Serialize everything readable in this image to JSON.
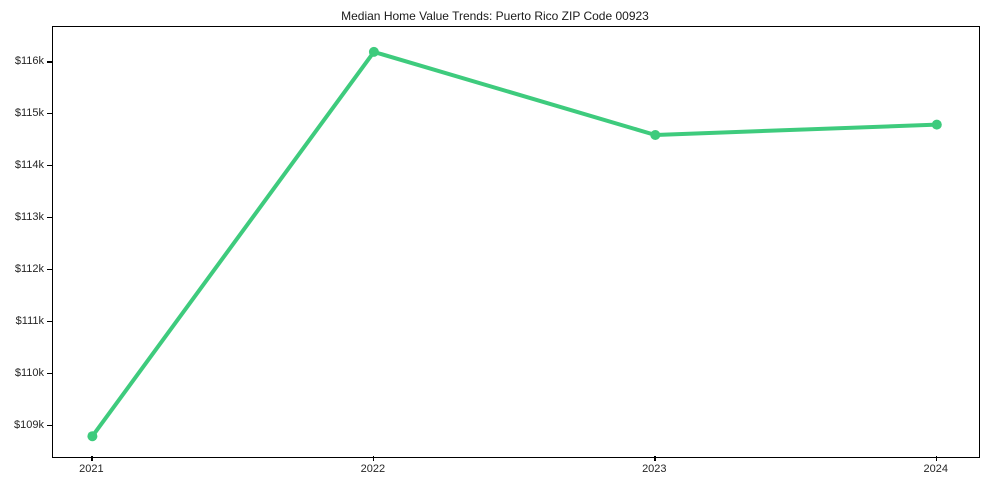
{
  "title": "Median Home Value Trends: Puerto Rico ZIP Code 00923",
  "chart_data": {
    "type": "line",
    "title": "Median Home Value Trends: Puerto Rico ZIP Code 00923",
    "x": [
      2021,
      2022,
      2023,
      2024
    ],
    "values": [
      108800,
      116200,
      114600,
      114800
    ],
    "series_name": "Median Home Value",
    "x_tick_labels": [
      "2021",
      "2022",
      "2023",
      "2024"
    ],
    "y_tick_values": [
      109000,
      110000,
      111000,
      112000,
      113000,
      114000,
      115000,
      116000
    ],
    "y_tick_labels": [
      "$109k",
      "$110k",
      "$111k",
      "$112k",
      "$113k",
      "$114k",
      "$115k",
      "$116k"
    ],
    "xlim": [
      2020.86,
      2024.15
    ],
    "ylim": [
      108400,
      116680
    ],
    "xlabel": "",
    "ylabel": "",
    "grid": false,
    "legend": null,
    "line_color": "#3ecb7d",
    "marker_color": "#3ecb7d",
    "line_width": 4,
    "marker_radius": 5
  },
  "colors": {
    "background": "#ffffff",
    "spine": "#000000",
    "tick_text": "#262626",
    "title_text": "#1a1a1a"
  }
}
